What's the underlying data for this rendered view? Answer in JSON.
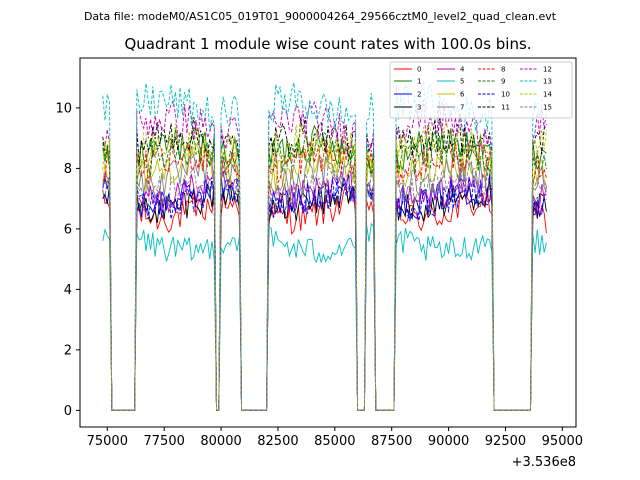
{
  "chart_data": {
    "type": "line",
    "suptitle": "Data file: modeM0/AS1C05_019T01_9000004264_29566cztM0_level2_quad_clean.evt",
    "title": "Quadrant 1 module wise count rates with 100.0s bins.",
    "xlabel": "",
    "ylabel": "",
    "x_offset_label": "+3.536e8",
    "xlim": [
      73800,
      95600
    ],
    "ylim": [
      -0.55,
      11.65
    ],
    "x_ticks": [
      75000,
      77500,
      80000,
      82500,
      85000,
      87500,
      90000,
      92500,
      95000
    ],
    "x_tick_labels": [
      "75000",
      "77500",
      "80000",
      "82500",
      "85000",
      "87500",
      "90000",
      "92500",
      "95000"
    ],
    "y_ticks": [
      0,
      2,
      4,
      6,
      8,
      10
    ],
    "y_tick_labels": [
      "0",
      "2",
      "4",
      "6",
      "8",
      "10"
    ],
    "bin_width_s": 100,
    "legend_position": "top-right",
    "legend_columns": 4,
    "good_time_intervals": [
      [
        74800,
        75100
      ],
      [
        76300,
        79700
      ],
      [
        80000,
        80800
      ],
      [
        82100,
        85900
      ],
      [
        86400,
        86700
      ],
      [
        87700,
        91900
      ],
      [
        93700,
        94300
      ]
    ],
    "drop_to": 0.0,
    "series": [
      {
        "name": "0",
        "level": 6.6,
        "color": "#ff0000",
        "dash": "solid"
      },
      {
        "name": "1",
        "level": 8.6,
        "color": "#008000",
        "dash": "solid"
      },
      {
        "name": "2",
        "level": 7.1,
        "color": "#0000ff",
        "dash": "solid"
      },
      {
        "name": "3",
        "level": 6.9,
        "color": "#000000",
        "dash": "solid"
      },
      {
        "name": "4",
        "level": 7.2,
        "color": "#bf00bf",
        "dash": "solid"
      },
      {
        "name": "5",
        "level": 5.5,
        "color": "#00bfbf",
        "dash": "solid"
      },
      {
        "name": "6",
        "level": 8.0,
        "color": "#bfbf00",
        "dash": "solid"
      },
      {
        "name": "7",
        "level": 7.7,
        "color": "#808080",
        "dash": "solid"
      },
      {
        "name": "8",
        "level": 8.2,
        "color": "#ff0000",
        "dash": "dashed"
      },
      {
        "name": "9",
        "level": 8.4,
        "color": "#008000",
        "dash": "dashed"
      },
      {
        "name": "10",
        "level": 7.0,
        "color": "#0000ff",
        "dash": "dashed"
      },
      {
        "name": "11",
        "level": 8.9,
        "color": "#000000",
        "dash": "dashed"
      },
      {
        "name": "12",
        "level": 9.4,
        "color": "#bf00bf",
        "dash": "dashed"
      },
      {
        "name": "13",
        "level": 10.0,
        "color": "#00bfbf",
        "dash": "dashed"
      },
      {
        "name": "14",
        "level": 8.7,
        "color": "#bfbf00",
        "dash": "dashed"
      },
      {
        "name": "15",
        "level": 7.4,
        "color": "#808080",
        "dash": "dashed"
      }
    ]
  }
}
